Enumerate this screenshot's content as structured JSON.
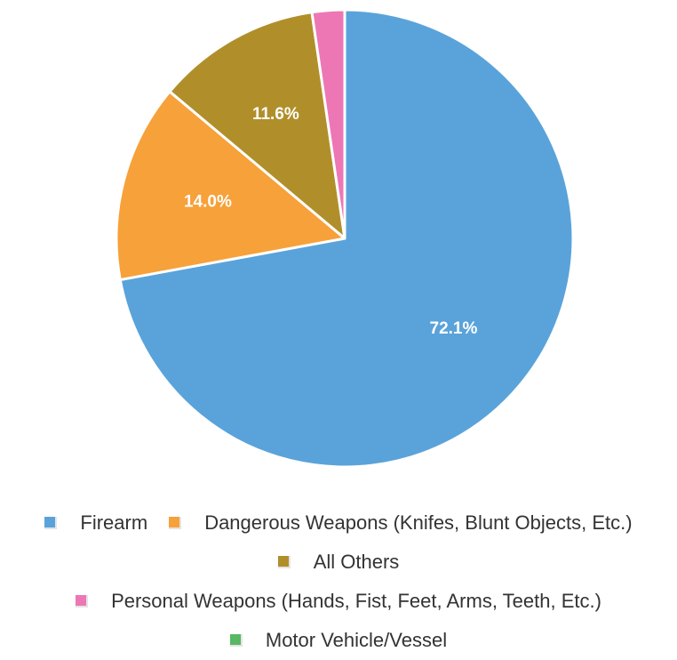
{
  "chart_data": {
    "type": "pie",
    "slices": [
      {
        "name": "Firearm",
        "value": 72.1,
        "label": "72.1%",
        "color": "#5aa3da"
      },
      {
        "name": "Dangerous Weapons (Knifes, Blunt Objects, Etc.)",
        "value": 14.0,
        "label": "14.0%",
        "color": "#f7a13a"
      },
      {
        "name": "All Others",
        "value": 11.6,
        "label": "11.6%",
        "color": "#b08f2b"
      },
      {
        "name": "Personal Weapons (Hands, Fist, Feet, Arms, Teeth, Etc.)",
        "value": 2.3,
        "label": "",
        "color": "#ed77b4"
      },
      {
        "name": "Motor Vehicle/Vessel",
        "value": 0.0,
        "label": "",
        "color": "#58b864"
      }
    ],
    "legend_position": "bottom",
    "legend_rows": [
      [
        "Firearm",
        "Dangerous Weapons (Knifes, Blunt Objects, Etc.)"
      ],
      [
        "All Others"
      ],
      [
        "Personal Weapons (Hands, Fist, Feet, Arms, Teeth, Etc.)"
      ],
      [
        "Motor Vehicle/Vessel"
      ]
    ]
  }
}
